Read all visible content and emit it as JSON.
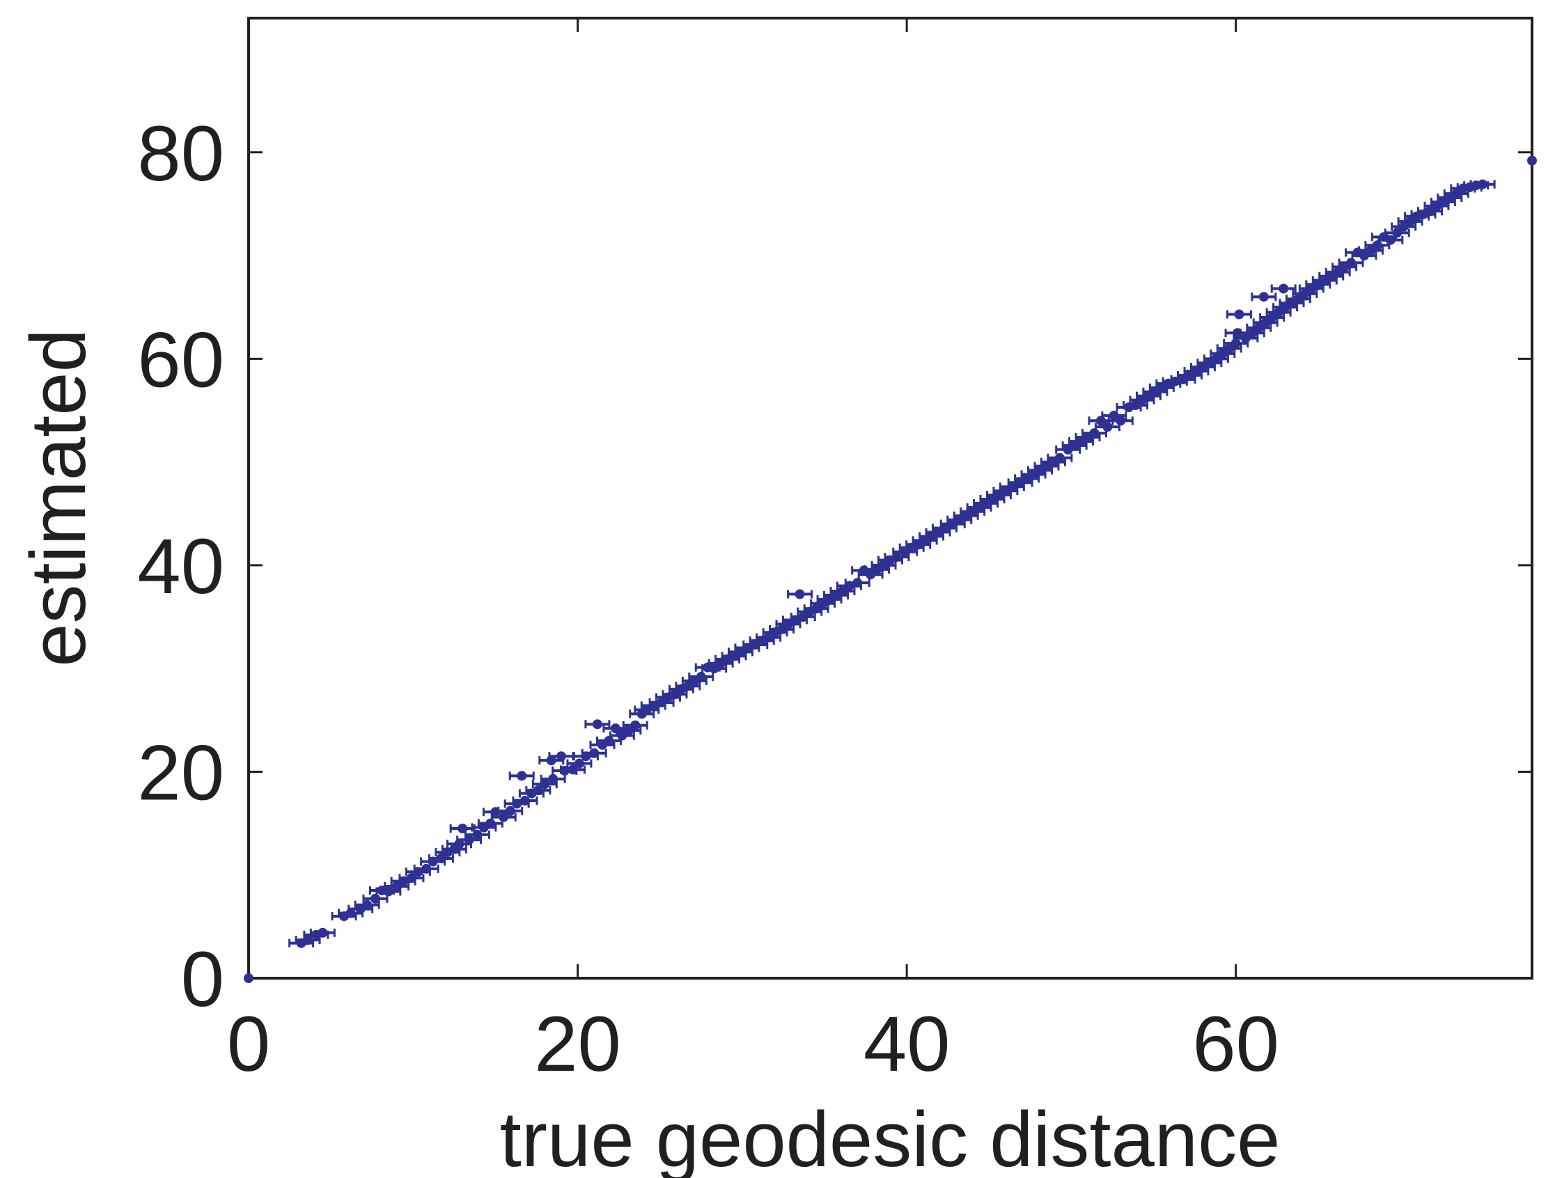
{
  "chart_data": {
    "type": "scatter",
    "title": "",
    "xlabel": "true geodesic distance",
    "ylabel": "estimated",
    "xlim": [
      0,
      78
    ],
    "ylim": [
      0,
      93
    ],
    "xticks": [
      0,
      20,
      40,
      60
    ],
    "yticks": [
      0,
      20,
      40,
      60,
      80
    ],
    "grid": false,
    "legend": "none",
    "error_bars": "horizontal",
    "marker_color": "#2e3192",
    "series": [
      {
        "values": [
          [
            0,
            0
          ],
          [
            3.2,
            3.4
          ],
          [
            3.6,
            3.7
          ],
          [
            4.1,
            4.2
          ],
          [
            4.5,
            4.4
          ],
          [
            5.8,
            6.0
          ],
          [
            6.2,
            6.3
          ],
          [
            6.8,
            6.7
          ],
          [
            7.2,
            7.1
          ],
          [
            7.7,
            7.7
          ],
          [
            8.1,
            8.5
          ],
          [
            8.5,
            8.4
          ],
          [
            9.0,
            8.9
          ],
          [
            9.4,
            9.4
          ],
          [
            9.9,
            9.7
          ],
          [
            10.3,
            10.3
          ],
          [
            10.8,
            10.6
          ],
          [
            11.2,
            11.3
          ],
          [
            11.7,
            11.6
          ],
          [
            12.1,
            12.2
          ],
          [
            12.5,
            12.5
          ],
          [
            12.8,
            13.0
          ],
          [
            13.0,
            14.5
          ],
          [
            13.4,
            13.4
          ],
          [
            13.9,
            13.9
          ],
          [
            14.3,
            14.6
          ],
          [
            14.7,
            15.0
          ],
          [
            15.0,
            16.1
          ],
          [
            15.5,
            15.6
          ],
          [
            15.9,
            16.2
          ],
          [
            16.3,
            16.9
          ],
          [
            16.8,
            17.2
          ],
          [
            16.6,
            19.6
          ],
          [
            17.2,
            17.9
          ],
          [
            17.6,
            18.2
          ],
          [
            18.0,
            18.8
          ],
          [
            18.4,
            21.1
          ],
          [
            18.5,
            19.3
          ],
          [
            19.0,
            21.5
          ],
          [
            19.2,
            20.1
          ],
          [
            19.7,
            20.2
          ],
          [
            20.1,
            20.8
          ],
          [
            20.5,
            21.5
          ],
          [
            21.0,
            21.8
          ],
          [
            21.2,
            24.6
          ],
          [
            21.5,
            22.6
          ],
          [
            21.9,
            23.0
          ],
          [
            22.3,
            24.2
          ],
          [
            22.7,
            23.5
          ],
          [
            23.1,
            24.0
          ],
          [
            23.5,
            24.5
          ],
          [
            23.9,
            25.6
          ],
          [
            24.2,
            26.0
          ],
          [
            24.6,
            26.4
          ],
          [
            25.1,
            26.7
          ],
          [
            25.5,
            27.2
          ],
          [
            25.9,
            27.5
          ],
          [
            26.3,
            28.0
          ],
          [
            26.7,
            28.3
          ],
          [
            27.1,
            28.8
          ],
          [
            27.5,
            29.2
          ],
          [
            27.9,
            30.1
          ],
          [
            28.3,
            30.0
          ],
          [
            28.7,
            30.5
          ],
          [
            29.1,
            30.9
          ],
          [
            29.5,
            31.2
          ],
          [
            29.9,
            31.6
          ],
          [
            30.3,
            32.0
          ],
          [
            30.8,
            32.3
          ],
          [
            31.2,
            32.7
          ],
          [
            31.6,
            33.0
          ],
          [
            32.0,
            33.5
          ],
          [
            32.4,
            33.8
          ],
          [
            32.8,
            34.3
          ],
          [
            33.2,
            34.7
          ],
          [
            33.5,
            37.2
          ],
          [
            33.7,
            35.0
          ],
          [
            34.1,
            35.5
          ],
          [
            34.5,
            35.8
          ],
          [
            34.9,
            36.3
          ],
          [
            35.3,
            36.7
          ],
          [
            35.7,
            37.1
          ],
          [
            36.1,
            37.5
          ],
          [
            36.5,
            38.0
          ],
          [
            37.0,
            38.3
          ],
          [
            37.4,
            39.5
          ],
          [
            37.8,
            39.1
          ],
          [
            38.2,
            39.6
          ],
          [
            38.6,
            40.0
          ],
          [
            39.0,
            40.5
          ],
          [
            39.4,
            40.8
          ],
          [
            39.9,
            41.3
          ],
          [
            40.3,
            41.7
          ],
          [
            40.7,
            42.0
          ],
          [
            41.1,
            42.4
          ],
          [
            41.5,
            42.8
          ],
          [
            41.9,
            43.2
          ],
          [
            42.3,
            43.6
          ],
          [
            42.8,
            44.0
          ],
          [
            43.2,
            44.4
          ],
          [
            43.6,
            44.8
          ],
          [
            44.0,
            45.2
          ],
          [
            44.4,
            45.6
          ],
          [
            44.8,
            46.0
          ],
          [
            45.2,
            46.4
          ],
          [
            45.6,
            46.8
          ],
          [
            46.0,
            47.2
          ],
          [
            46.4,
            47.6
          ],
          [
            46.9,
            48.0
          ],
          [
            47.3,
            48.4
          ],
          [
            47.7,
            48.8
          ],
          [
            48.1,
            49.2
          ],
          [
            48.5,
            49.6
          ],
          [
            48.9,
            50.0
          ],
          [
            49.3,
            50.4
          ],
          [
            49.8,
            51.2
          ],
          [
            50.2,
            51.6
          ],
          [
            50.6,
            52.0
          ],
          [
            51.0,
            52.4
          ],
          [
            51.4,
            52.8
          ],
          [
            51.8,
            54.0
          ],
          [
            52.2,
            53.4
          ],
          [
            52.6,
            54.5
          ],
          [
            53.0,
            54.0
          ],
          [
            53.5,
            55.3
          ],
          [
            53.9,
            55.5
          ],
          [
            54.3,
            56.0
          ],
          [
            54.7,
            56.4
          ],
          [
            55.1,
            56.8
          ],
          [
            55.5,
            57.2
          ],
          [
            55.9,
            57.6
          ],
          [
            56.3,
            57.8
          ],
          [
            56.8,
            58.0
          ],
          [
            57.2,
            58.4
          ],
          [
            57.6,
            58.8
          ],
          [
            58.0,
            59.2
          ],
          [
            58.4,
            59.6
          ],
          [
            58.8,
            60.0
          ],
          [
            59.2,
            60.5
          ],
          [
            59.6,
            61.0
          ],
          [
            60.0,
            61.5
          ],
          [
            60.1,
            62.5
          ],
          [
            60.2,
            64.3
          ],
          [
            60.6,
            62.0
          ],
          [
            61.0,
            62.5
          ],
          [
            61.4,
            63.0
          ],
          [
            61.7,
            66.0
          ],
          [
            61.8,
            63.5
          ],
          [
            62.2,
            64.0
          ],
          [
            62.6,
            64.5
          ],
          [
            62.9,
            66.8
          ],
          [
            63.0,
            65.0
          ],
          [
            63.4,
            65.4
          ],
          [
            63.8,
            65.8
          ],
          [
            64.2,
            66.3
          ],
          [
            64.6,
            66.8
          ],
          [
            65.0,
            67.2
          ],
          [
            65.4,
            67.6
          ],
          [
            65.8,
            68.0
          ],
          [
            66.2,
            68.4
          ],
          [
            66.6,
            68.9
          ],
          [
            67.0,
            69.3
          ],
          [
            67.4,
            70.3
          ],
          [
            67.8,
            70.0
          ],
          [
            68.2,
            70.5
          ],
          [
            68.6,
            71.0
          ],
          [
            69.0,
            71.8
          ],
          [
            69.4,
            71.5
          ],
          [
            69.8,
            72.2
          ],
          [
            70.2,
            72.8
          ],
          [
            70.6,
            73.3
          ],
          [
            71.0,
            73.8
          ],
          [
            71.4,
            74.0
          ],
          [
            71.8,
            74.3
          ],
          [
            72.2,
            74.8
          ],
          [
            72.6,
            75.2
          ],
          [
            73.0,
            75.6
          ],
          [
            73.4,
            76.0
          ],
          [
            73.8,
            76.5
          ],
          [
            74.2,
            76.6
          ],
          [
            74.6,
            76.8
          ],
          [
            75.0,
            76.9
          ],
          [
            78.0,
            79.2
          ]
        ]
      }
    ]
  }
}
